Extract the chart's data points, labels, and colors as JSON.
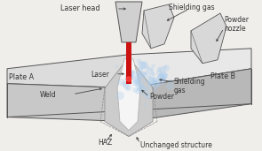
{
  "bg_color": "#f0eeeb",
  "labels": {
    "laser_head": "Laser head",
    "shielding_gas_top": "Shielding gas",
    "powder_nozzle": "Powder\nnozzle",
    "plate_a": "Plate A",
    "plate_b": "Plate B",
    "laser": "Laser",
    "weld": "Weld",
    "shielding_gas_mid": "Shielding\ngas",
    "powder": "Powder",
    "haz": "HAZ",
    "unchanged": "Unchanged structure"
  },
  "colors": {
    "plate_top": "#dcdcdc",
    "plate_left": "#c8c8c8",
    "plate_right": "#b8b8b8",
    "outline": "#555555",
    "laser_beam": "#cc1111",
    "laser_head_fill": "#d0d0d0",
    "nozzle_fill": "#d8d8d8",
    "shielding_dot": "#aaccee",
    "weld_inner": "#f5f5f5",
    "haz_fill": "#c0c0c0",
    "text": "#333333"
  }
}
